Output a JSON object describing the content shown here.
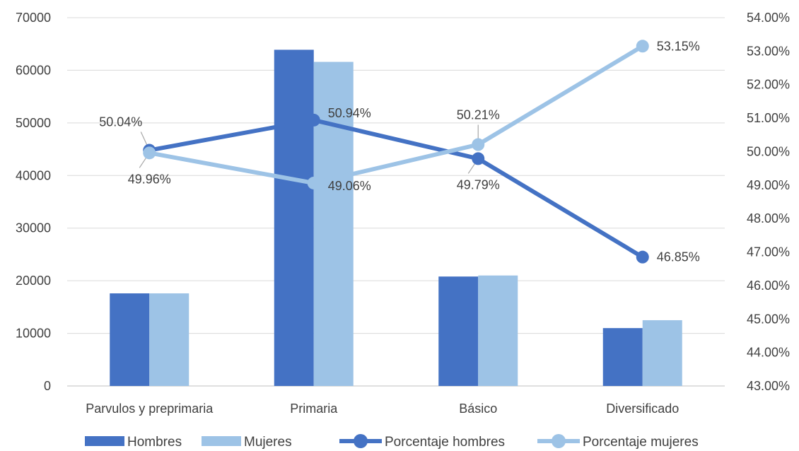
{
  "chart_data": {
    "type": "bar",
    "categories": [
      "Parvulos y preprimaria",
      "Primaria",
      "Básico",
      "Diversificado"
    ],
    "grid": true,
    "legend_position": "bottom",
    "left_axis": {
      "ylim": [
        0,
        70000
      ],
      "ticks": [
        0,
        10000,
        20000,
        30000,
        40000,
        50000,
        60000,
        70000
      ],
      "tick_labels": [
        "0",
        "10000",
        "20000",
        "30000",
        "40000",
        "50000",
        "60000",
        "70000"
      ]
    },
    "right_axis": {
      "ylim": [
        43,
        54
      ],
      "ticks": [
        43,
        44,
        45,
        46,
        47,
        48,
        49,
        50,
        51,
        52,
        53,
        54
      ],
      "tick_labels": [
        "43.00%",
        "44.00%",
        "45.00%",
        "46.00%",
        "47.00%",
        "48.00%",
        "49.00%",
        "50.00%",
        "51.00%",
        "52.00%",
        "53.00%",
        "54.00%"
      ]
    },
    "series": [
      {
        "name": "Hombres",
        "kind": "bar",
        "axis": "left",
        "color": "#4472C4",
        "values": [
          17600,
          63900,
          20800,
          11000
        ]
      },
      {
        "name": "Mujeres",
        "kind": "bar",
        "axis": "left",
        "color": "#9DC3E6",
        "values": [
          17600,
          61600,
          21000,
          12500
        ]
      },
      {
        "name": "Porcentaje hombres",
        "kind": "line",
        "axis": "right",
        "color": "#4472C4",
        "values": [
          50.04,
          50.94,
          49.79,
          46.85
        ],
        "labels": [
          "50.04%",
          "50.94%",
          "49.79%",
          "46.85%"
        ]
      },
      {
        "name": "Porcentaje mujeres",
        "kind": "line",
        "axis": "right",
        "color": "#9DC3E6",
        "values": [
          49.96,
          49.06,
          50.21,
          53.15
        ],
        "labels": [
          "49.96%",
          "49.06%",
          "50.21%",
          "53.15%"
        ]
      }
    ]
  }
}
